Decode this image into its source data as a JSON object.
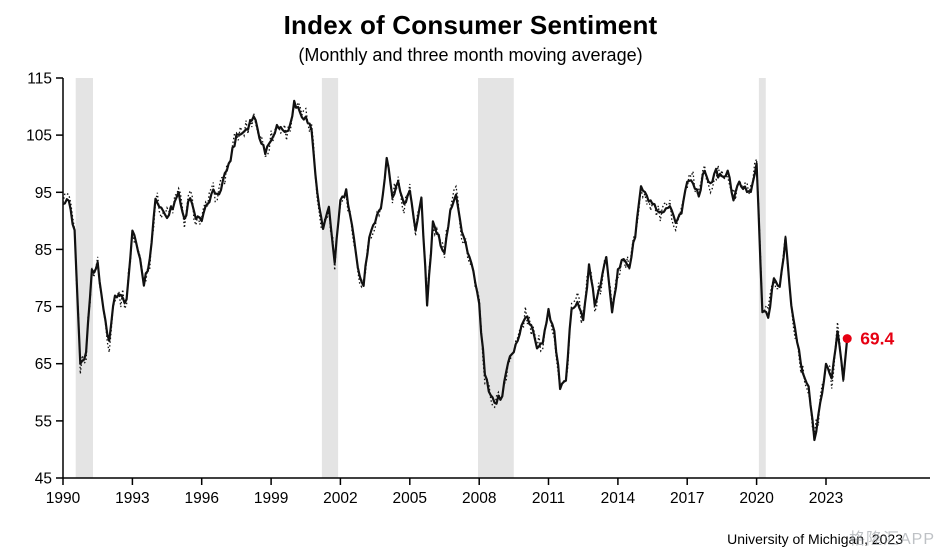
{
  "chart_data": {
    "type": "line",
    "title": "Index of Consumer Sentiment",
    "subtitle": "(Monthly and three month moving average)",
    "xlabel": "",
    "ylabel": "",
    "xlim": [
      1990,
      2027.5
    ],
    "ylim": [
      45,
      115
    ],
    "yticks": [
      45,
      55,
      65,
      75,
      85,
      95,
      105,
      115
    ],
    "xticks": [
      1990,
      1993,
      1996,
      1999,
      2002,
      2005,
      2008,
      2011,
      2014,
      2017,
      2020,
      2023
    ],
    "grid": false,
    "legend_position": "none",
    "line_color": "#111111",
    "band_color": "#e4e4e4",
    "recession_bands": [
      [
        1990.55,
        1991.3
      ],
      [
        2001.2,
        2001.9
      ],
      [
        2007.95,
        2009.5
      ],
      [
        2020.1,
        2020.4
      ]
    ],
    "series": [
      {
        "name": "Monthly",
        "style": "dotted"
      },
      {
        "name": "Three month moving average",
        "style": "solid"
      }
    ],
    "x_start": 1990.0,
    "x_step": 0.25,
    "x_unit": "year (quarterly samples, approximate values read from plot)",
    "values": [
      93,
      93.5,
      88,
      64.5,
      67,
      81,
      82.5,
      74,
      68.5,
      77.5,
      76.5,
      76,
      88,
      85,
      79,
      83,
      94,
      92,
      91,
      92.5,
      95,
      90,
      94.5,
      90.5,
      90,
      93,
      95,
      95,
      98,
      101,
      105,
      105.5,
      106.5,
      108.5,
      105,
      102,
      104.5,
      106.5,
      106,
      105.5,
      110.5,
      109,
      108,
      106,
      94.5,
      88.5,
      92,
      83,
      93.5,
      95,
      89,
      81.5,
      79,
      87.5,
      90,
      92,
      101,
      94.5,
      96.5,
      93,
      95.5,
      88,
      94,
      75.5,
      89.5,
      87,
      84.5,
      92,
      95,
      88,
      85,
      81,
      75,
      63,
      59,
      58.5,
      59.5,
      65.5,
      67,
      70.5,
      73.5,
      71.5,
      68,
      69,
      74.5,
      70.5,
      61,
      61.5,
      75,
      76,
      72.5,
      82,
      75.5,
      78.5,
      84,
      74.5,
      81,
      83.5,
      82,
      87.5,
      96,
      94,
      93,
      91,
      91.5,
      92,
      90,
      91.5,
      97,
      97,
      94.5,
      99,
      96.5,
      98.5,
      97.5,
      98.5,
      94,
      96.5,
      95.5,
      95.5,
      100,
      74,
      73.5,
      79.5,
      78.5,
      87,
      75,
      69,
      63,
      61,
      51.5,
      58,
      65,
      62,
      71,
      62.5
    ],
    "last_point": {
      "x": 2023.92,
      "y": 69.4,
      "label": "69.4",
      "color": "#e60012"
    }
  },
  "footer": {
    "source": "University of Michigan, 2023",
    "watermark": "格隆汇APP"
  }
}
